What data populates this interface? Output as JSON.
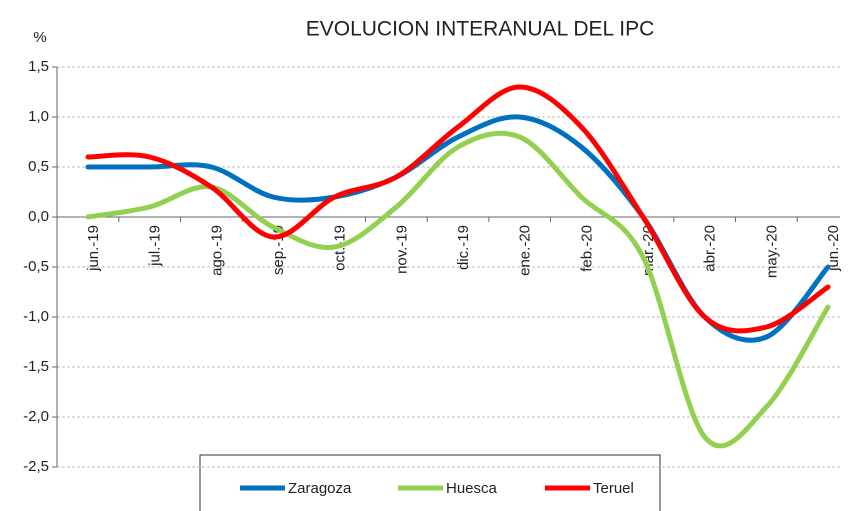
{
  "chart_data": {
    "type": "line",
    "title": "EVOLUCION INTERANUAL DEL IPC",
    "y_label": "%",
    "categories": [
      "jun.-19",
      "jul.-19",
      "ago.-19",
      "sep.-19",
      "oct.-19",
      "nov.-19",
      "dic.-19",
      "ene.-20",
      "feb.-20",
      "mar.-20",
      "abr.-20",
      "may.-20",
      "jun.-20"
    ],
    "series": [
      {
        "name": "Zaragoza",
        "color": "#0070c0",
        "values": [
          0.5,
          0.5,
          0.5,
          0.2,
          0.2,
          0.4,
          0.8,
          1.0,
          0.7,
          0.0,
          -1.0,
          -1.2,
          -0.5
        ]
      },
      {
        "name": "Huesca",
        "color": "#92d050",
        "values": [
          0.0,
          0.1,
          0.3,
          -0.1,
          -0.3,
          0.1,
          0.7,
          0.8,
          0.2,
          -0.4,
          -2.2,
          -1.9,
          -0.9
        ]
      },
      {
        "name": "Teruel",
        "color": "#ff0000",
        "values": [
          0.6,
          0.6,
          0.3,
          -0.2,
          0.2,
          0.4,
          0.9,
          1.3,
          0.9,
          0.0,
          -1.0,
          -1.1,
          -0.7
        ]
      }
    ],
    "ylim": [
      -2.5,
      1.5
    ],
    "yticks": [
      {
        "value": -2.5,
        "label": "-2,5"
      },
      {
        "value": -2.0,
        "label": "-2,0"
      },
      {
        "value": -1.5,
        "label": "-1,5"
      },
      {
        "value": -1.0,
        "label": "-1,0"
      },
      {
        "value": -0.5,
        "label": "-0,5"
      },
      {
        "value": 0,
        "label": "0,0"
      },
      {
        "value": 0.5,
        "label": "0,5"
      },
      {
        "value": 1.0,
        "label": "1,0"
      },
      {
        "value": 1.5,
        "label": "1,5"
      }
    ],
    "grid": true,
    "legend": "bottom",
    "smooth": true
  }
}
